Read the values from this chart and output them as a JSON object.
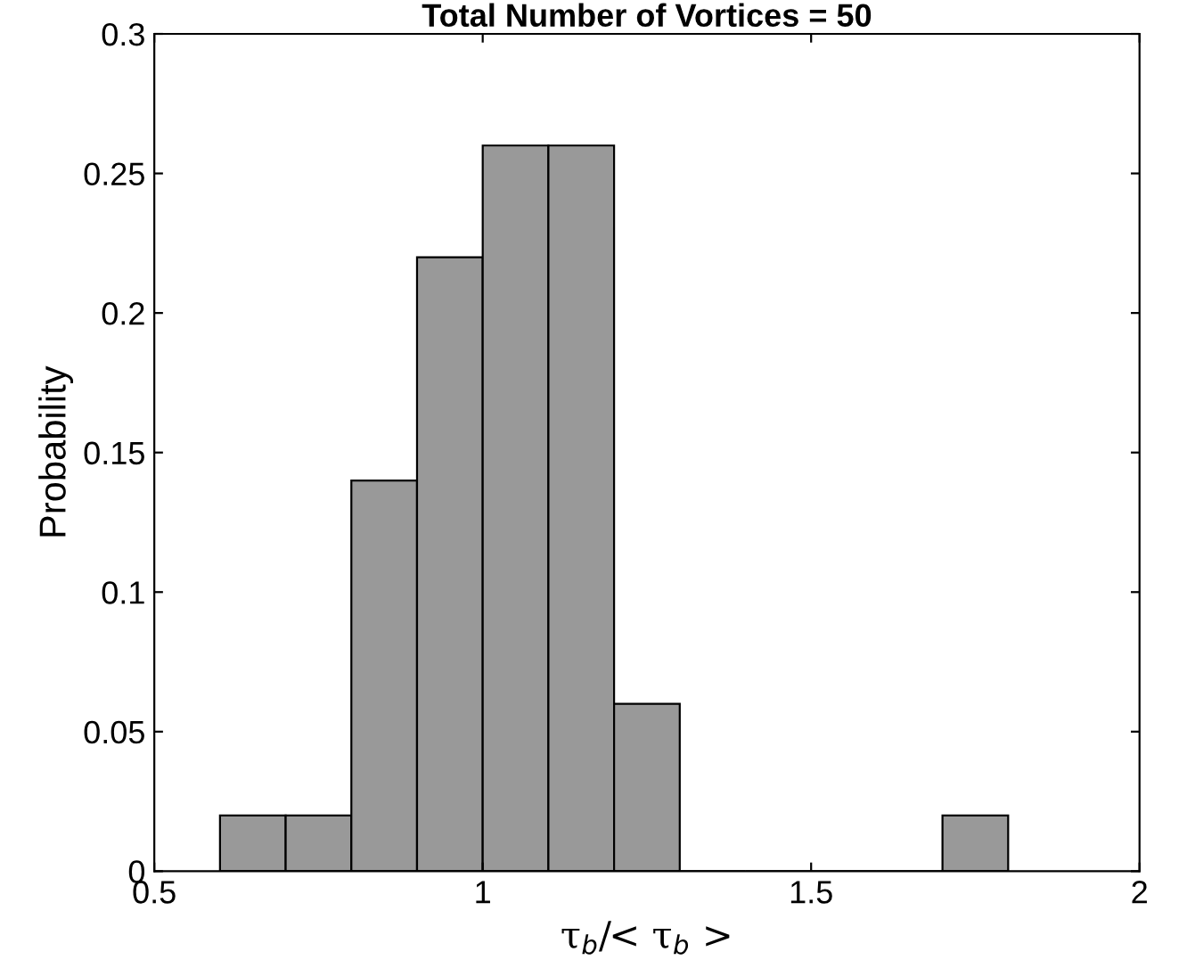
{
  "chart_data": {
    "type": "histogram",
    "title": "Total Number of Vortices = 50",
    "xlabel": "τ$_{b}$/< τ$_{b}$ >",
    "ylabel": "Probability",
    "bins": [
      0.6,
      0.7,
      0.8,
      0.9,
      1.0,
      1.1,
      1.2,
      1.3,
      1.4,
      1.5,
      1.6,
      1.7,
      1.8
    ],
    "values": [
      0.02,
      0.02,
      0.14,
      0.22,
      0.26,
      0.26,
      0.06,
      0,
      0,
      0,
      0,
      0.02
    ],
    "color": "#999999",
    "xlim": [
      0.5,
      2
    ],
    "xticks": [
      0.5,
      1,
      1.5,
      2
    ],
    "ylim": [
      0,
      0.3
    ],
    "yticks": [
      0,
      0.05,
      0.1,
      0.15,
      0.2,
      0.25,
      0.3
    ],
    "grid": false
  }
}
